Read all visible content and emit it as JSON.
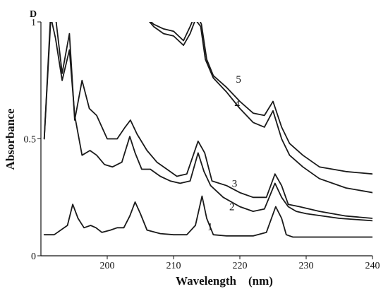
{
  "chart_data": {
    "type": "line",
    "corner_label": "D",
    "xlabel": "Wavelength    (nm)",
    "ylabel": "Absorbance",
    "xlim": [
      190,
      240
    ],
    "ylim": [
      0,
      1
    ],
    "x_ticks": [
      {
        "value": 200,
        "label": "200"
      },
      {
        "value": 210,
        "label": "210"
      },
      {
        "value": 220,
        "label": "220"
      },
      {
        "value": 230,
        "label": "230"
      },
      {
        "value": 240,
        "label": "240"
      }
    ],
    "y_ticks": [
      {
        "value": 0,
        "label": "0"
      },
      {
        "value": 0.5,
        "label": "0.5"
      },
      {
        "value": 1,
        "label": "1"
      }
    ],
    "grid": false,
    "legend": "none",
    "series": [
      {
        "name": "1",
        "label_at": [
          215.5,
          0.125
        ],
        "x": [
          190.5,
          192,
          194,
          194.8,
          195.6,
          196.5,
          197.5,
          198.3,
          199.2,
          200.5,
          201.5,
          202.5,
          203.4,
          204.2,
          205,
          206,
          208,
          210,
          212,
          213.3,
          214.3,
          215,
          216,
          218,
          220,
          222,
          224,
          225.4,
          226.3,
          227,
          228,
          232,
          236,
          240
        ],
        "y": [
          0.09,
          0.09,
          0.13,
          0.22,
          0.16,
          0.12,
          0.13,
          0.12,
          0.1,
          0.11,
          0.12,
          0.12,
          0.17,
          0.23,
          0.18,
          0.11,
          0.095,
          0.09,
          0.09,
          0.13,
          0.255,
          0.16,
          0.09,
          0.085,
          0.085,
          0.085,
          0.1,
          0.21,
          0.16,
          0.09,
          0.08,
          0.08,
          0.08,
          0.08
        ]
      },
      {
        "name": "2",
        "label_at": [
          218.8,
          0.21
        ],
        "x": [
          190.5,
          191.5,
          192.2,
          193.2,
          194.3,
          195.1,
          196.2,
          197.4,
          198.4,
          199.6,
          200.8,
          202.2,
          203.4,
          204.2,
          205.2,
          206.5,
          208,
          209.5,
          211,
          212.5,
          213.7,
          214.6,
          215.6,
          217.5,
          220,
          222,
          223.7,
          225.3,
          226.3,
          227.3,
          228.5,
          230,
          235,
          240
        ],
        "y": [
          0.5,
          1.02,
          0.93,
          0.75,
          0.88,
          0.6,
          0.43,
          0.45,
          0.43,
          0.39,
          0.38,
          0.4,
          0.51,
          0.44,
          0.37,
          0.37,
          0.34,
          0.32,
          0.31,
          0.32,
          0.44,
          0.36,
          0.3,
          0.25,
          0.21,
          0.19,
          0.2,
          0.31,
          0.25,
          0.21,
          0.19,
          0.18,
          0.16,
          0.15
        ]
      },
      {
        "name": "3",
        "label_at": [
          219.2,
          0.31
        ],
        "x": [
          190.5,
          191.5,
          192.3,
          193.2,
          194.3,
          195.1,
          196.2,
          197.3,
          198.4,
          200,
          201.5,
          202.7,
          203.5,
          204.5,
          206,
          207.5,
          209,
          210.5,
          212,
          213.7,
          214.7,
          215.8,
          218,
          220,
          222,
          224,
          225.3,
          226.3,
          227.3,
          229,
          232,
          236,
          240
        ],
        "y": [
          0.5,
          1.05,
          1.0,
          0.78,
          0.95,
          0.58,
          0.75,
          0.63,
          0.6,
          0.5,
          0.5,
          0.55,
          0.58,
          0.52,
          0.45,
          0.4,
          0.37,
          0.34,
          0.35,
          0.49,
          0.44,
          0.32,
          0.3,
          0.27,
          0.25,
          0.25,
          0.35,
          0.3,
          0.22,
          0.21,
          0.19,
          0.17,
          0.16
        ]
      },
      {
        "name": "4",
        "label_at": [
          219.6,
          0.65
        ],
        "x": [
          205.5,
          207,
          208.5,
          210,
          211.5,
          212.5,
          213.3,
          214.1,
          214.8,
          216,
          218,
          220,
          222,
          223.7,
          225,
          226.3,
          227.5,
          229.5,
          232,
          236,
          240
        ],
        "y": [
          1.03,
          0.98,
          0.95,
          0.94,
          0.9,
          0.95,
          1.01,
          0.98,
          0.84,
          0.76,
          0.7,
          0.63,
          0.57,
          0.55,
          0.62,
          0.5,
          0.43,
          0.38,
          0.33,
          0.29,
          0.27
        ]
      },
      {
        "name": "5",
        "label_at": [
          219.8,
          0.755
        ],
        "x": [
          205.5,
          207,
          208.5,
          210,
          211.5,
          212.5,
          213.4,
          214.2,
          215,
          216,
          218,
          220,
          222,
          223.7,
          225,
          226.3,
          227.5,
          229.5,
          232,
          236,
          240
        ],
        "y": [
          1.03,
          0.99,
          0.97,
          0.96,
          0.92,
          0.98,
          1.04,
          0.99,
          0.84,
          0.77,
          0.72,
          0.66,
          0.61,
          0.6,
          0.66,
          0.55,
          0.48,
          0.43,
          0.38,
          0.36,
          0.35
        ]
      }
    ]
  }
}
